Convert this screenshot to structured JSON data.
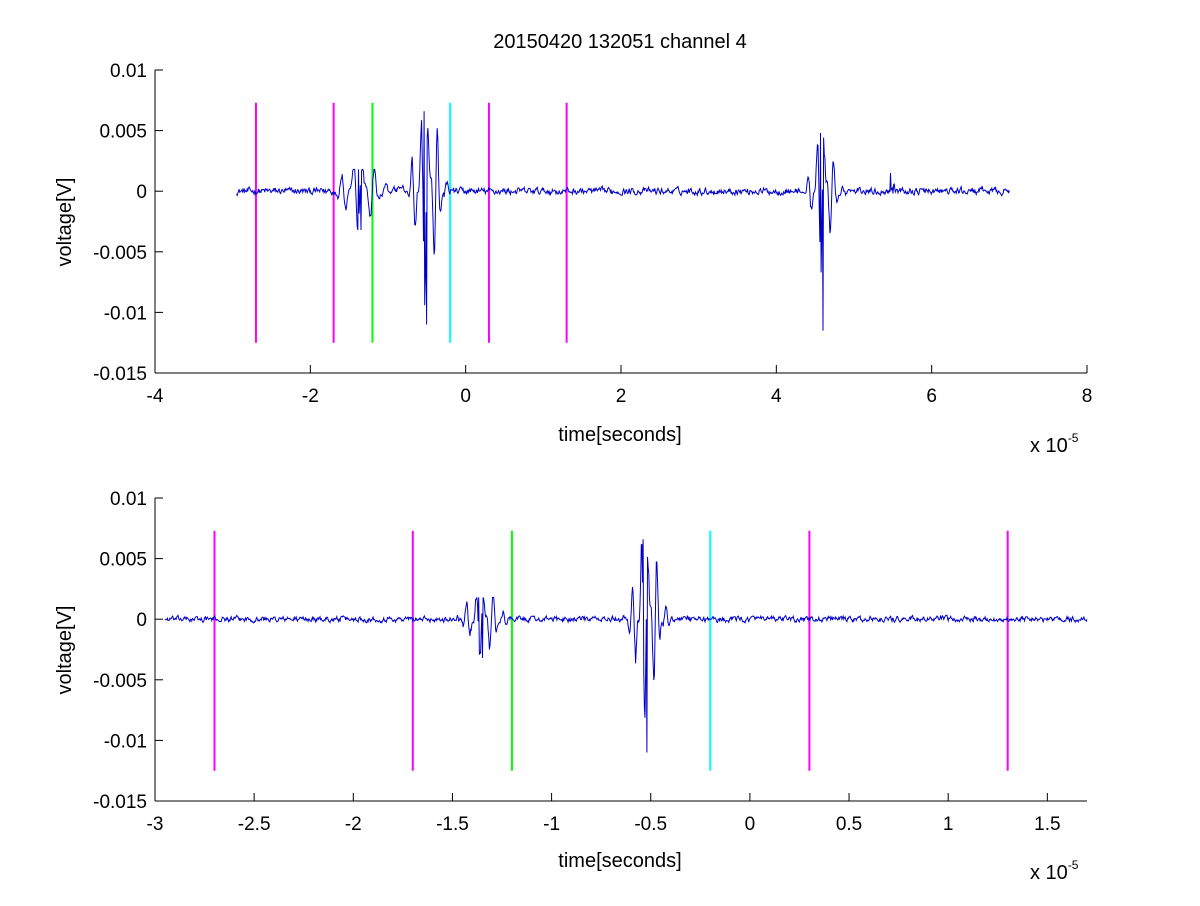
{
  "figure": {
    "title": "20150420 132051 channel 4",
    "colors": {
      "signal": "#0000cc",
      "marker_magenta": "#ff00ff",
      "marker_green": "#00ff00",
      "marker_cyan": "#00ffff",
      "axes": "#000000"
    }
  },
  "chart_data": [
    {
      "type": "line",
      "title": "20150420 132051 channel 4",
      "xlabel": "time[seconds]",
      "ylabel": "voltage[V]",
      "x_exponent_label": "x 10",
      "x_exponent_power": "-5",
      "xlim": [
        -4,
        8
      ],
      "ylim": [
        -0.015,
        0.01
      ],
      "x_ticks": [
        -4,
        -2,
        0,
        2,
        4,
        6,
        8
      ],
      "x_tick_labels": [
        "-4",
        "-2",
        "0",
        "2",
        "4",
        "6",
        "8"
      ],
      "y_ticks": [
        -0.015,
        -0.01,
        -0.005,
        0,
        0.005,
        0.01
      ],
      "y_tick_labels": [
        "-0.015",
        "-0.01",
        "-0.005",
        "0",
        "0.005",
        "0.01"
      ],
      "grid": false,
      "legend": "none",
      "signal": {
        "x_range": [
          -2.95,
          7.0
        ],
        "baseline": 0.0,
        "noise_amplitude": 0.0005,
        "bursts": [
          {
            "center": -1.35,
            "width": 0.35,
            "freq": 7,
            "amp": 0.0022,
            "min": -0.0032,
            "max": 0.0018
          },
          {
            "center": -0.5,
            "width": 0.25,
            "freq": 9,
            "amp": 0.0055,
            "min": -0.011,
            "max": 0.0066
          },
          {
            "center": 4.6,
            "width": 0.22,
            "freq": 9,
            "amp": 0.004,
            "min": -0.0115,
            "max": 0.0048
          },
          {
            "center": 5.5,
            "width": 0.03,
            "freq": 3,
            "amp": 0.001,
            "min": -0.0002,
            "max": 0.0015
          }
        ]
      },
      "markers": [
        {
          "x": -2.7,
          "color": "magenta"
        },
        {
          "x": -1.7,
          "color": "magenta"
        },
        {
          "x": -1.2,
          "color": "green"
        },
        {
          "x": -0.2,
          "color": "cyan"
        },
        {
          "x": 0.3,
          "color": "magenta"
        },
        {
          "x": 1.3,
          "color": "magenta"
        }
      ],
      "marker_y_range": [
        -0.0125,
        0.0073
      ]
    },
    {
      "type": "line",
      "title": "",
      "xlabel": "time[seconds]",
      "ylabel": "voltage[V]",
      "x_exponent_label": "x 10",
      "x_exponent_power": "-5",
      "xlim": [
        -3,
        1.7
      ],
      "ylim": [
        -0.015,
        0.01
      ],
      "x_ticks": [
        -3,
        -2.5,
        -2,
        -1.5,
        -1,
        -0.5,
        0,
        0.5,
        1,
        1.5
      ],
      "x_tick_labels": [
        "-3",
        "-2.5",
        "-2",
        "-1.5",
        "-1",
        "-0.5",
        "0",
        "0.5",
        "1",
        "1.5"
      ],
      "y_ticks": [
        -0.015,
        -0.01,
        -0.005,
        0,
        0.005,
        0.01
      ],
      "y_tick_labels": [
        "-0.015",
        "-0.01",
        "-0.005",
        "0",
        "0.005",
        "0.01"
      ],
      "grid": false,
      "legend": "none",
      "signal": {
        "x_range": [
          -2.95,
          1.7
        ],
        "baseline": 0.0,
        "noise_amplitude": 0.0004,
        "bursts": [
          {
            "center": -1.35,
            "width": 0.12,
            "freq": 22,
            "amp": 0.0022,
            "min": -0.0032,
            "max": 0.0018
          },
          {
            "center": -0.52,
            "width": 0.1,
            "freq": 24,
            "amp": 0.0055,
            "min": -0.011,
            "max": 0.0066
          }
        ]
      },
      "markers": [
        {
          "x": -2.7,
          "color": "magenta"
        },
        {
          "x": -1.7,
          "color": "magenta"
        },
        {
          "x": -1.2,
          "color": "green"
        },
        {
          "x": -0.2,
          "color": "cyan"
        },
        {
          "x": 0.3,
          "color": "magenta"
        },
        {
          "x": 1.3,
          "color": "magenta"
        }
      ],
      "marker_y_range": [
        -0.0125,
        0.0073
      ]
    }
  ]
}
